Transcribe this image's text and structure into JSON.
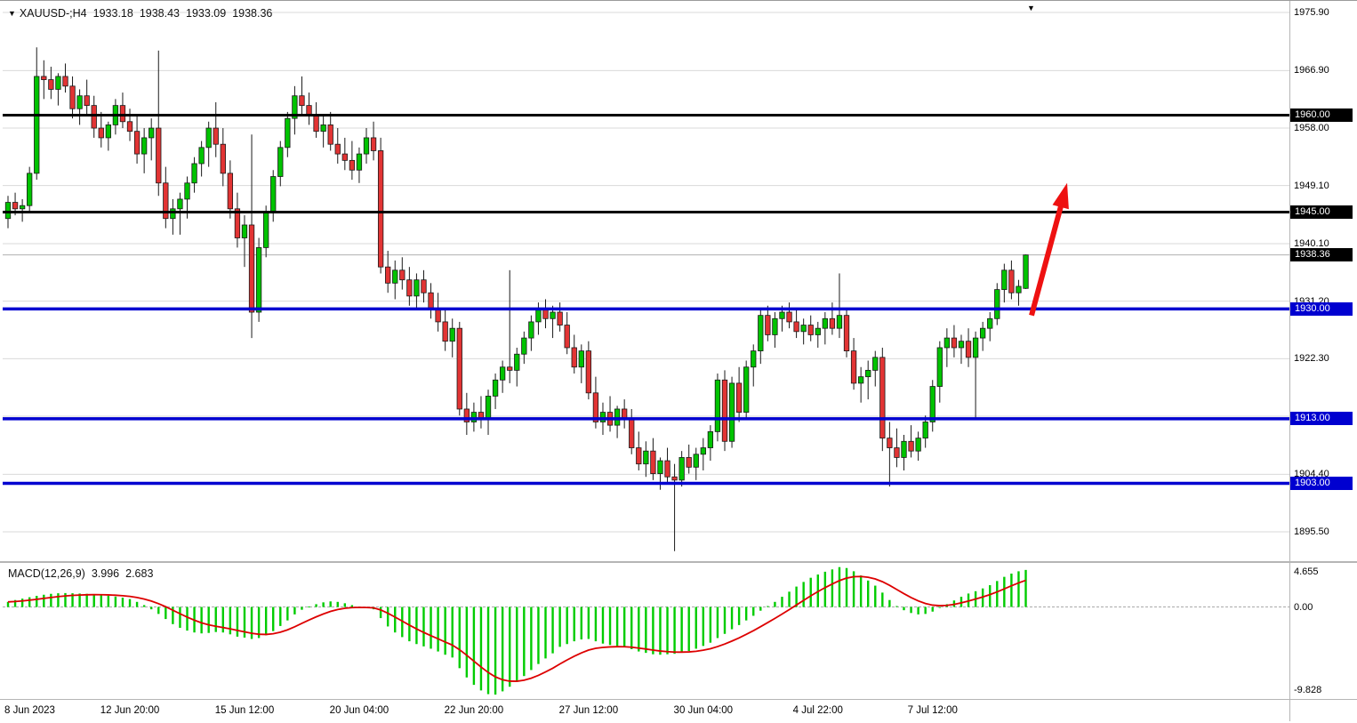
{
  "header": {
    "title": "XAUUSD-;H4",
    "open": "1933.18",
    "high": "1938.43",
    "low": "1933.09",
    "close": "1938.36"
  },
  "colors": {
    "bull": "#00c300",
    "bear": "#e23434",
    "wick": "#1a1a1a",
    "grid": "#d9d9d9",
    "level_black": "#000000",
    "level_blue": "#0000d0",
    "current_price_line": "#b0b0b0",
    "macd_hist": "#00cc00",
    "macd_signal": "#dd0000",
    "arrow": "#ee1111"
  },
  "chart_data": {
    "type": "candlestick",
    "symbol": "XAUUSD-",
    "timeframe": "H4",
    "ohlc_current": {
      "open": 1933.18,
      "high": 1938.43,
      "low": 1933.09,
      "close": 1938.36
    },
    "price_axis": {
      "max": 1977.42,
      "min": 1890.95,
      "ticks": [
        "1975.90",
        "1966.90",
        "1958.00",
        "1949.10",
        "1940.10",
        "1931.20",
        "1922.30",
        "1913.40",
        "1904.40",
        "1895.50"
      ]
    },
    "time_axis": {
      "labels": [
        "8 Jun 2023",
        "12 Jun 20:00",
        "15 Jun 12:00",
        "20 Jun 04:00",
        "22 Jun 20:00",
        "27 Jun 12:00",
        "30 Jun 04:00",
        "4 Jul 22:00",
        "7 Jul 12:00"
      ]
    },
    "levels": [
      {
        "price": 1960.0,
        "label": "1960.00",
        "color": "#000000",
        "width": 3
      },
      {
        "price": 1945.0,
        "label": "1945.00",
        "color": "#000000",
        "width": 3
      },
      {
        "price": 1930.0,
        "label": "1930.00",
        "color": "#0000d0",
        "width": 3.5
      },
      {
        "price": 1913.0,
        "label": "1913.00",
        "color": "#0000d0",
        "width": 3.5
      },
      {
        "price": 1903.0,
        "label": "1903.00",
        "color": "#0000d0",
        "width": 3.5
      }
    ],
    "current_price": {
      "price": 1938.36,
      "label": "1938.36"
    },
    "arrow": {
      "from_price": 1929.0,
      "to_price": 1949.5
    },
    "candles": [
      [
        1944.0,
        1947.5,
        1942.5,
        1946.5
      ],
      [
        1946.5,
        1948.0,
        1944.5,
        1945.5
      ],
      [
        1945.5,
        1947.0,
        1943.5,
        1946.0
      ],
      [
        1946.0,
        1952.0,
        1945.0,
        1951.0
      ],
      [
        1951.0,
        1970.5,
        1950.0,
        1966.0
      ],
      [
        1966.0,
        1968.5,
        1962.5,
        1965.5
      ],
      [
        1965.5,
        1967.5,
        1962.5,
        1964.0
      ],
      [
        1964.0,
        1966.5,
        1961.5,
        1966.0
      ],
      [
        1966.0,
        1968.0,
        1963.5,
        1964.5
      ],
      [
        1964.5,
        1966.0,
        1959.5,
        1961.0
      ],
      [
        1961.0,
        1964.0,
        1958.5,
        1963.0
      ],
      [
        1963.0,
        1965.5,
        1960.0,
        1961.5
      ],
      [
        1961.5,
        1963.0,
        1956.5,
        1958.0
      ],
      [
        1958.0,
        1960.5,
        1955.0,
        1956.5
      ],
      [
        1956.5,
        1959.0,
        1954.5,
        1958.5
      ],
      [
        1958.5,
        1962.5,
        1957.0,
        1961.5
      ],
      [
        1961.5,
        1963.5,
        1958.0,
        1959.0
      ],
      [
        1959.0,
        1961.0,
        1956.0,
        1957.5
      ],
      [
        1957.5,
        1960.0,
        1952.5,
        1954.0
      ],
      [
        1954.0,
        1958.0,
        1951.0,
        1956.5
      ],
      [
        1956.5,
        1959.5,
        1953.0,
        1958.0
      ],
      [
        1958.0,
        1970.0,
        1947.5,
        1949.5
      ],
      [
        1949.5,
        1952.0,
        1942.5,
        1944.0
      ],
      [
        1944.0,
        1947.0,
        1941.5,
        1945.5
      ],
      [
        1945.5,
        1948.0,
        1941.5,
        1947.0
      ],
      [
        1947.0,
        1950.5,
        1944.0,
        1949.5
      ],
      [
        1949.5,
        1953.5,
        1948.0,
        1952.5
      ],
      [
        1952.5,
        1956.0,
        1950.5,
        1955.0
      ],
      [
        1955.0,
        1959.0,
        1952.0,
        1958.0
      ],
      [
        1958.0,
        1962.0,
        1953.5,
        1955.5
      ],
      [
        1955.5,
        1958.0,
        1949.0,
        1951.0
      ],
      [
        1951.0,
        1953.0,
        1944.0,
        1945.5
      ],
      [
        1945.5,
        1948.0,
        1939.5,
        1941.0
      ],
      [
        1941.0,
        1944.5,
        1936.5,
        1943.0
      ],
      [
        1943.0,
        1957.0,
        1925.5,
        1929.5
      ],
      [
        1929.5,
        1941.0,
        1928.0,
        1939.5
      ],
      [
        1939.5,
        1946.0,
        1938.0,
        1945.0
      ],
      [
        1945.0,
        1951.5,
        1943.5,
        1950.5
      ],
      [
        1950.5,
        1956.0,
        1949.0,
        1955.0
      ],
      [
        1955.0,
        1960.5,
        1953.5,
        1959.5
      ],
      [
        1959.5,
        1964.5,
        1957.0,
        1963.0
      ],
      [
        1963.0,
        1966.0,
        1960.0,
        1961.5
      ],
      [
        1961.5,
        1963.5,
        1958.5,
        1960.0
      ],
      [
        1960.0,
        1962.0,
        1956.5,
        1957.5
      ],
      [
        1957.5,
        1960.0,
        1955.0,
        1958.5
      ],
      [
        1958.5,
        1960.5,
        1954.5,
        1955.5
      ],
      [
        1955.5,
        1958.0,
        1952.5,
        1954.0
      ],
      [
        1954.0,
        1956.5,
        1951.5,
        1953.0
      ],
      [
        1953.0,
        1956.0,
        1950.0,
        1951.5
      ],
      [
        1951.5,
        1955.0,
        1949.5,
        1954.0
      ],
      [
        1954.0,
        1958.0,
        1952.5,
        1956.5
      ],
      [
        1956.5,
        1959.0,
        1953.0,
        1954.5
      ],
      [
        1954.5,
        1956.5,
        1935.5,
        1936.5
      ],
      [
        1936.5,
        1939.0,
        1932.5,
        1934.0
      ],
      [
        1934.0,
        1937.5,
        1931.5,
        1936.0
      ],
      [
        1936.0,
        1938.0,
        1933.0,
        1934.5
      ],
      [
        1934.5,
        1936.5,
        1930.5,
        1932.0
      ],
      [
        1932.0,
        1935.5,
        1930.0,
        1934.5
      ],
      [
        1934.5,
        1936.0,
        1931.0,
        1932.5
      ],
      [
        1932.5,
        1934.0,
        1928.5,
        1930.0
      ],
      [
        1930.0,
        1932.5,
        1926.5,
        1928.0
      ],
      [
        1928.0,
        1930.0,
        1923.5,
        1925.0
      ],
      [
        1925.0,
        1928.5,
        1922.5,
        1927.0
      ],
      [
        1927.0,
        1928.0,
        1913.5,
        1914.5
      ],
      [
        1914.5,
        1917.0,
        1910.5,
        1912.5
      ],
      [
        1912.5,
        1915.5,
        1911.0,
        1914.0
      ],
      [
        1914.0,
        1916.5,
        1911.5,
        1913.0
      ],
      [
        1913.0,
        1917.5,
        1910.5,
        1916.5
      ],
      [
        1916.5,
        1920.0,
        1914.5,
        1919.0
      ],
      [
        1919.0,
        1922.0,
        1917.0,
        1921.0
      ],
      [
        1921.0,
        1936.0,
        1918.5,
        1920.5
      ],
      [
        1920.5,
        1924.0,
        1918.0,
        1923.0
      ],
      [
        1923.0,
        1926.5,
        1921.5,
        1925.5
      ],
      [
        1925.5,
        1929.0,
        1923.5,
        1928.0
      ],
      [
        1928.0,
        1931.0,
        1926.0,
        1930.0
      ],
      [
        1930.0,
        1931.5,
        1927.0,
        1928.5
      ],
      [
        1928.5,
        1930.5,
        1925.5,
        1929.5
      ],
      [
        1929.5,
        1931.0,
        1926.5,
        1927.5
      ],
      [
        1927.5,
        1929.5,
        1923.0,
        1924.0
      ],
      [
        1924.0,
        1926.0,
        1920.0,
        1921.0
      ],
      [
        1921.0,
        1924.5,
        1918.5,
        1923.5
      ],
      [
        1923.5,
        1925.0,
        1916.0,
        1917.0
      ],
      [
        1917.0,
        1919.5,
        1911.5,
        1912.5
      ],
      [
        1912.5,
        1915.5,
        1910.5,
        1914.0
      ],
      [
        1914.0,
        1916.5,
        1911.0,
        1912.0
      ],
      [
        1912.0,
        1915.0,
        1910.0,
        1914.5
      ],
      [
        1914.5,
        1916.0,
        1911.5,
        1913.0
      ],
      [
        1913.0,
        1914.5,
        1907.5,
        1908.5
      ],
      [
        1908.5,
        1911.0,
        1905.0,
        1906.0
      ],
      [
        1906.0,
        1909.5,
        1904.0,
        1908.0
      ],
      [
        1908.0,
        1910.0,
        1903.5,
        1904.5
      ],
      [
        1904.5,
        1907.0,
        1902.0,
        1906.5
      ],
      [
        1906.5,
        1908.5,
        1903.0,
        1904.0
      ],
      [
        1904.0,
        1906.0,
        1892.5,
        1903.5
      ],
      [
        1903.5,
        1908.0,
        1902.5,
        1907.0
      ],
      [
        1907.0,
        1909.0,
        1904.5,
        1905.5
      ],
      [
        1905.5,
        1908.5,
        1903.5,
        1907.5
      ],
      [
        1907.5,
        1910.0,
        1905.0,
        1908.5
      ],
      [
        1908.5,
        1912.0,
        1906.5,
        1911.0
      ],
      [
        1911.0,
        1920.0,
        1909.5,
        1919.0
      ],
      [
        1919.0,
        1920.5,
        1908.0,
        1909.5
      ],
      [
        1909.5,
        1919.5,
        1908.5,
        1918.5
      ],
      [
        1918.5,
        1921.0,
        1912.5,
        1914.0
      ],
      [
        1914.0,
        1922.0,
        1913.0,
        1921.0
      ],
      [
        1921.0,
        1924.5,
        1918.0,
        1923.5
      ],
      [
        1923.5,
        1930.0,
        1921.5,
        1929.0
      ],
      [
        1929.0,
        1930.5,
        1925.0,
        1926.0
      ],
      [
        1926.0,
        1929.5,
        1924.0,
        1928.5
      ],
      [
        1928.5,
        1930.5,
        1926.5,
        1929.5
      ],
      [
        1929.5,
        1931.0,
        1927.0,
        1928.0
      ],
      [
        1928.0,
        1930.0,
        1925.5,
        1926.5
      ],
      [
        1926.5,
        1928.5,
        1924.5,
        1927.5
      ],
      [
        1927.5,
        1929.0,
        1925.0,
        1926.0
      ],
      [
        1926.0,
        1928.0,
        1924.0,
        1927.0
      ],
      [
        1927.0,
        1929.5,
        1924.5,
        1928.5
      ],
      [
        1928.5,
        1931.0,
        1926.0,
        1927.0
      ],
      [
        1927.0,
        1935.5,
        1925.5,
        1929.0
      ],
      [
        1929.0,
        1930.0,
        1922.5,
        1923.5
      ],
      [
        1923.5,
        1925.5,
        1917.5,
        1918.5
      ],
      [
        1918.5,
        1921.0,
        1915.5,
        1919.5
      ],
      [
        1919.5,
        1922.0,
        1916.0,
        1920.5
      ],
      [
        1920.5,
        1923.5,
        1918.0,
        1922.5
      ],
      [
        1922.5,
        1924.0,
        1908.0,
        1910.0
      ],
      [
        1910.0,
        1912.5,
        1902.5,
        1908.5
      ],
      [
        1908.5,
        1911.5,
        1905.5,
        1907.0
      ],
      [
        1907.0,
        1910.5,
        1905.0,
        1909.5
      ],
      [
        1909.5,
        1912.0,
        1907.0,
        1908.0
      ],
      [
        1908.0,
        1911.0,
        1906.5,
        1910.0
      ],
      [
        1910.0,
        1913.5,
        1908.5,
        1912.5
      ],
      [
        1912.5,
        1919.0,
        1911.0,
        1918.0
      ],
      [
        1918.0,
        1925.0,
        1915.5,
        1924.0
      ],
      [
        1924.0,
        1927.0,
        1921.0,
        1925.5
      ],
      [
        1925.5,
        1927.5,
        1922.5,
        1924.0
      ],
      [
        1924.0,
        1926.0,
        1921.5,
        1925.0
      ],
      [
        1925.0,
        1927.0,
        1921.0,
        1922.5
      ],
      [
        1922.5,
        1926.5,
        1913.0,
        1925.5
      ],
      [
        1925.5,
        1928.0,
        1923.5,
        1927.0
      ],
      [
        1927.0,
        1929.5,
        1925.0,
        1928.5
      ],
      [
        1928.5,
        1934.0,
        1927.5,
        1933.0
      ],
      [
        1933.0,
        1937.0,
        1931.0,
        1936.0
      ],
      [
        1936.0,
        1937.5,
        1931.5,
        1932.5
      ],
      [
        1932.5,
        1934.5,
        1930.5,
        1933.5
      ],
      [
        1933.18,
        1938.43,
        1933.09,
        1938.36
      ]
    ],
    "macd": {
      "label": "MACD(12,26,9)",
      "main_value": "3.996",
      "signal_value": "2.683",
      "params": [
        12,
        26,
        9
      ],
      "scale_max": 4.655,
      "scale_min": -9.828,
      "axis_labels": [
        "4.655",
        "0.00",
        "-9.828"
      ],
      "main": [
        0.55,
        0.75,
        0.9,
        1.05,
        1.2,
        1.32,
        1.42,
        1.48,
        1.5,
        1.48,
        1.45,
        1.42,
        1.38,
        1.3,
        1.22,
        1.12,
        1.0,
        0.85,
        0.55,
        0.2,
        -0.25,
        -0.75,
        -1.3,
        -1.85,
        -2.25,
        -2.55,
        -2.75,
        -2.85,
        -2.8,
        -2.7,
        -2.75,
        -2.95,
        -3.2,
        -3.3,
        -3.45,
        -3.35,
        -3.05,
        -2.6,
        -2.05,
        -1.45,
        -0.8,
        -0.3,
        0.05,
        0.3,
        0.5,
        0.6,
        0.55,
        0.4,
        0.2,
        0.05,
        -0.1,
        -0.25,
        -1.2,
        -2.1,
        -2.75,
        -3.25,
        -3.7,
        -4.0,
        -4.25,
        -4.5,
        -4.8,
        -5.15,
        -5.45,
        -6.6,
        -7.6,
        -8.4,
        -9.0,
        -9.4,
        -9.45,
        -9.1,
        -8.6,
        -8.05,
        -7.45,
        -6.8,
        -6.15,
        -5.55,
        -5.0,
        -4.3,
        -4.0,
        -3.7,
        -3.5,
        -3.45,
        -3.7,
        -3.95,
        -4.1,
        -4.2,
        -4.3,
        -4.55,
        -4.8,
        -4.95,
        -5.1,
        -5.15,
        -5.1,
        -5.05,
        -4.9,
        -4.75,
        -4.5,
        -4.2,
        -3.85,
        -3.35,
        -2.9,
        -2.4,
        -1.95,
        -1.45,
        -0.95,
        -0.4,
        0.1,
        0.55,
        1.1,
        1.65,
        2.2,
        2.7,
        3.15,
        3.5,
        3.8,
        4.05,
        4.3,
        4.2,
        3.85,
        3.4,
        2.85,
        2.3,
        1.55,
        0.75,
        0.1,
        -0.35,
        -0.65,
        -0.8,
        -0.75,
        -0.5,
        -0.1,
        0.3,
        0.7,
        1.1,
        1.45,
        1.7,
        2.0,
        2.35,
        2.8,
        3.25,
        3.6,
        3.85,
        3.996
      ]
    }
  }
}
